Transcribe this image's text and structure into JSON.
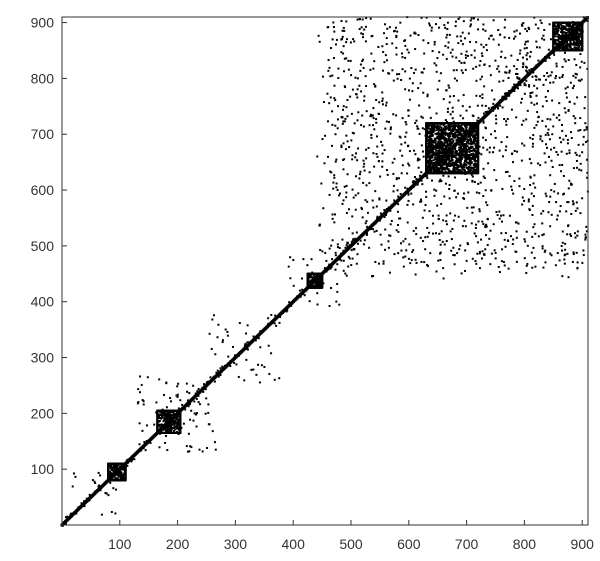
{
  "chart_data": {
    "type": "heatmap",
    "title": "",
    "xlabel": "",
    "ylabel": "",
    "xlim": [
      0,
      910
    ],
    "ylim": [
      0,
      910
    ],
    "x_ticks": [
      100,
      200,
      300,
      400,
      500,
      600,
      700,
      800,
      900
    ],
    "y_ticks": [
      100,
      200,
      300,
      400,
      500,
      600,
      700,
      800,
      900
    ],
    "x_tick_labels": [
      "100",
      "200",
      "300",
      "400",
      "500",
      "600",
      "700",
      "800",
      "900"
    ],
    "y_tick_labels": [
      "100",
      "200",
      "300",
      "400",
      "500",
      "600",
      "700",
      "800",
      "900"
    ],
    "grid": false,
    "legend": "none",
    "colors": {
      "mark": "#000000",
      "axis": "#333333",
      "background": "#ffffff"
    },
    "marker": "dot",
    "diagonal": {
      "from": 0,
      "to": 910
    },
    "dense_blocks": [
      {
        "x": [
          80,
          110
        ],
        "y": [
          80,
          110
        ]
      },
      {
        "x": [
          165,
          205
        ],
        "y": [
          165,
          205
        ]
      },
      {
        "x": [
          425,
          450
        ],
        "y": [
          425,
          450
        ]
      },
      {
        "x": [
          630,
          720
        ],
        "y": [
          630,
          720
        ]
      },
      {
        "x": [
          850,
          900
        ],
        "y": [
          850,
          900
        ]
      }
    ],
    "clusters": [
      {
        "x": [
          10,
          95
        ],
        "y": [
          10,
          95
        ],
        "density": 0.06
      },
      {
        "x": [
          130,
          270
        ],
        "y": [
          130,
          270
        ],
        "density": 0.08
      },
      {
        "x": [
          250,
          380
        ],
        "y": [
          250,
          380
        ],
        "density": 0.05
      },
      {
        "x": [
          380,
          480
        ],
        "y": [
          380,
          480
        ],
        "density": 0.06
      },
      {
        "x": [
          460,
          910
        ],
        "y": [
          460,
          910
        ],
        "density": 0.1
      },
      {
        "x": [
          440,
          910
        ],
        "y": [
          440,
          910
        ],
        "density": 0.03
      }
    ]
  }
}
